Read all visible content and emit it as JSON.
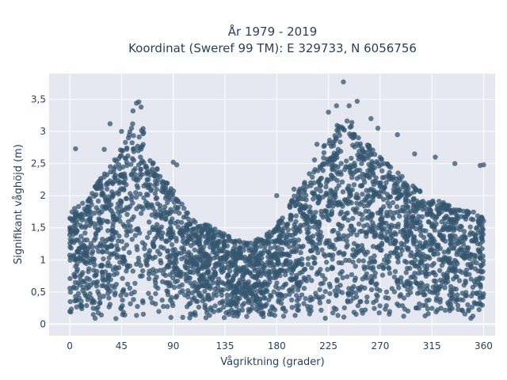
{
  "chart_data": {
    "type": "scatter",
    "title_lines": [
      "År 1979 - 2019",
      "Koordinat (Sweref 99 TM): E 329733, N 6056756"
    ],
    "xlabel": "Vågriktning (grader)",
    "ylabel": "Signifikant våghöjd (m)",
    "xlim": [
      -18,
      370
    ],
    "ylim": [
      -0.18,
      3.9
    ],
    "x_ticks": [
      0,
      45,
      90,
      135,
      180,
      225,
      270,
      315,
      360
    ],
    "x_tick_labels": [
      "0",
      "45",
      "90",
      "135",
      "180",
      "225",
      "270",
      "315",
      "360"
    ],
    "y_ticks": [
      0,
      0.5,
      1,
      1.5,
      2,
      2.5,
      3,
      3.5
    ],
    "y_tick_labels": [
      "0",
      "0,5",
      "1",
      "1,5",
      "2",
      "2,5",
      "3",
      "3,5"
    ],
    "grid": true,
    "legend": "none",
    "series": [
      {
        "marker_color": "#34566f",
        "envelope_x": [
          0,
          10,
          20,
          30,
          40,
          50,
          55,
          60,
          65,
          70,
          80,
          90,
          100,
          110,
          120,
          130,
          140,
          150,
          160,
          170,
          180,
          190,
          200,
          210,
          220,
          230,
          235,
          240,
          250,
          260,
          270,
          280,
          290,
          300,
          310,
          320,
          330,
          340,
          350,
          360
        ],
        "envelope_y_max": [
          1.75,
          1.9,
          2.1,
          2.35,
          2.6,
          2.9,
          3.15,
          3.2,
          3.0,
          2.6,
          2.3,
          2.1,
          1.8,
          1.6,
          1.55,
          1.45,
          1.35,
          1.3,
          1.3,
          1.4,
          1.55,
          1.8,
          2.2,
          2.5,
          2.75,
          3.0,
          3.25,
          3.3,
          3.0,
          2.8,
          2.6,
          2.45,
          2.3,
          2.15,
          2.0,
          1.95,
          1.85,
          1.8,
          1.75,
          1.7
        ],
        "outliers": [
          {
            "x": 5,
            "y": 2.73
          },
          {
            "x": 35,
            "y": 3.12
          },
          {
            "x": 55,
            "y": 3.32
          },
          {
            "x": 58,
            "y": 3.44
          },
          {
            "x": 60,
            "y": 3.46
          },
          {
            "x": 62,
            "y": 3.38
          },
          {
            "x": 90,
            "y": 2.52
          },
          {
            "x": 93,
            "y": 2.48
          },
          {
            "x": 30,
            "y": 2.72
          },
          {
            "x": 45,
            "y": 3.0
          },
          {
            "x": 225,
            "y": 3.3
          },
          {
            "x": 232,
            "y": 3.4
          },
          {
            "x": 238,
            "y": 3.77
          },
          {
            "x": 243,
            "y": 3.4
          },
          {
            "x": 250,
            "y": 3.47
          },
          {
            "x": 262,
            "y": 3.2
          },
          {
            "x": 268,
            "y": 3.05
          },
          {
            "x": 285,
            "y": 2.95
          },
          {
            "x": 300,
            "y": 2.65
          },
          {
            "x": 318,
            "y": 2.6
          },
          {
            "x": 335,
            "y": 2.5
          },
          {
            "x": 357,
            "y": 2.47
          },
          {
            "x": 360,
            "y": 2.48
          },
          {
            "x": 195,
            "y": 2.1
          },
          {
            "x": 180,
            "y": 2.0
          },
          {
            "x": 215,
            "y": 2.8
          }
        ]
      }
    ]
  }
}
